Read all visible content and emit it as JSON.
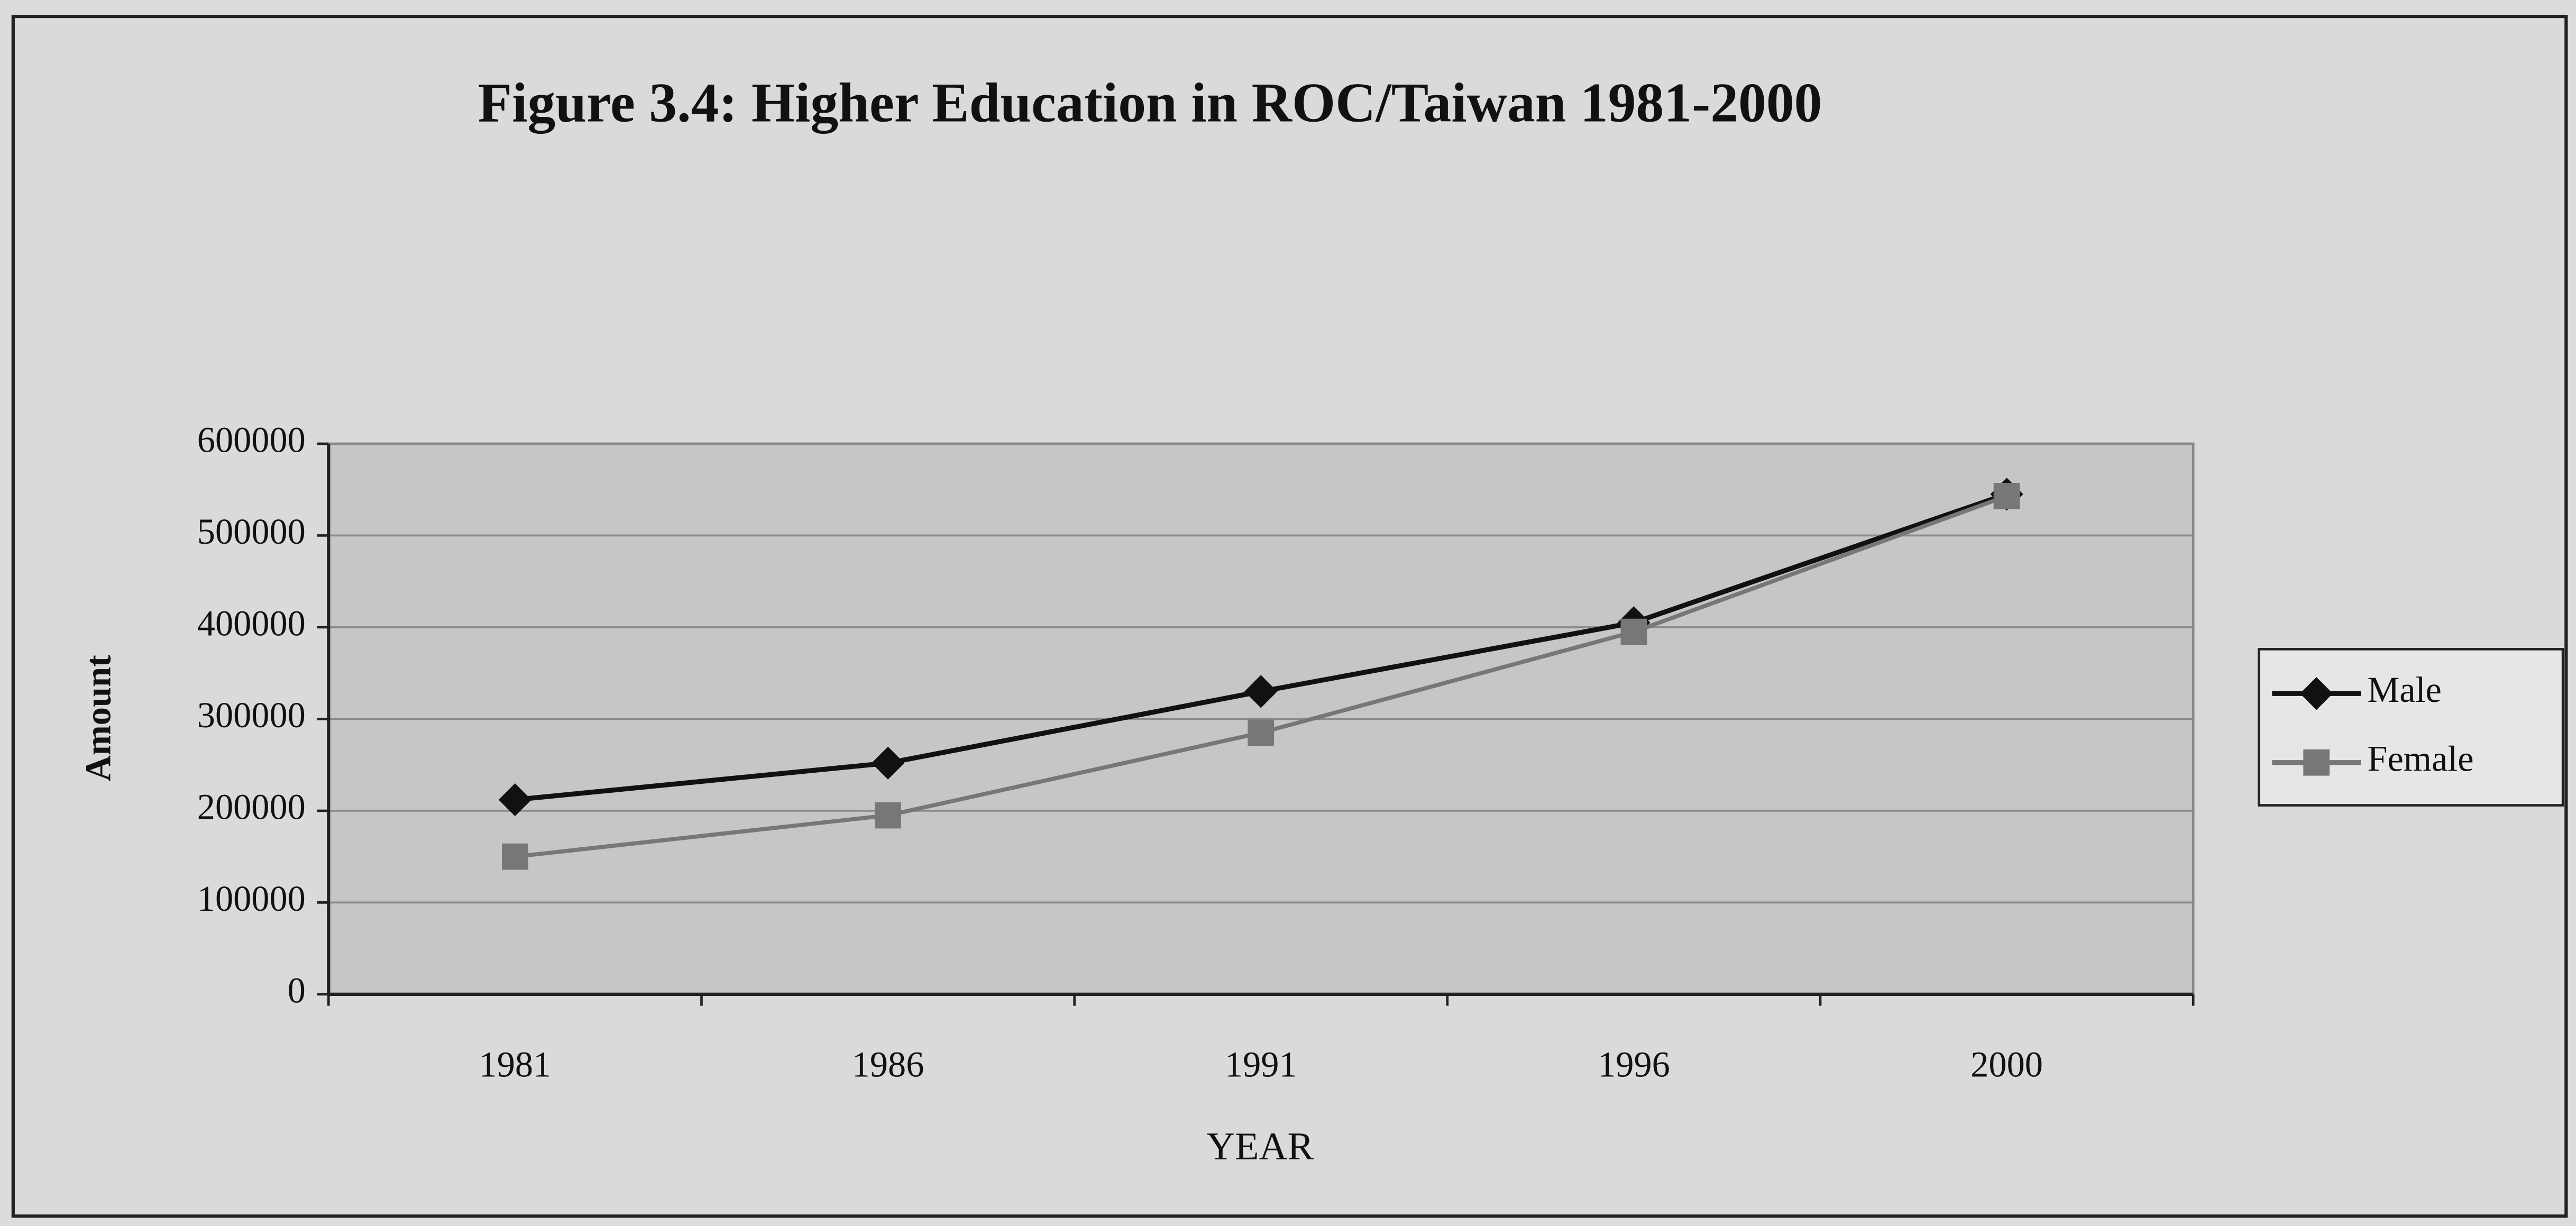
{
  "chart_data": {
    "type": "line",
    "title": "Figure 3.4: Higher Education in ROC/Taiwan 1981-2000",
    "x_label": "YEAR",
    "y_label": "Amount",
    "categories": [
      "1981",
      "1986",
      "1991",
      "1996",
      "2000"
    ],
    "series": [
      {
        "name": "Male",
        "color": "#111111",
        "values": [
          212000,
          252000,
          330000,
          405000,
          545000
        ]
      },
      {
        "name": "Female",
        "color": "#777777",
        "values": [
          150000,
          195000,
          285000,
          395000,
          543000
        ]
      }
    ],
    "ylim": [
      0,
      600000
    ],
    "yticks": [
      0,
      100000,
      200000,
      300000,
      400000,
      500000,
      600000
    ],
    "grid": true,
    "legend": "right"
  }
}
